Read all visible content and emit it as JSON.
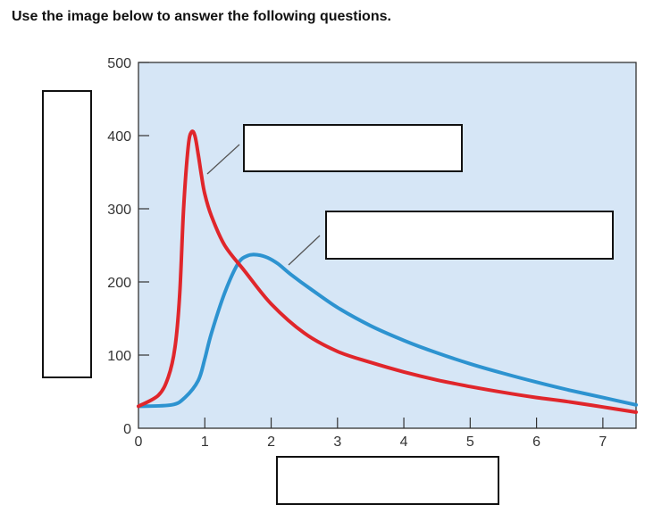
{
  "page": {
    "instruction": "Use the image below to answer the following questions."
  },
  "colors": {
    "plot_background": "#d6e6f6",
    "series_red": "#e0262b",
    "series_blue": "#2d93d0",
    "axis": "#333333"
  },
  "chart_data": {
    "type": "line",
    "title": "",
    "xlabel": "",
    "ylabel": "",
    "xlim": [
      0,
      7.5
    ],
    "ylim": [
      0,
      500
    ],
    "x_ticks": [
      "0",
      "1",
      "2",
      "3",
      "4",
      "5",
      "6",
      "7"
    ],
    "y_ticks": [
      "0",
      "100",
      "200",
      "300",
      "400",
      "500"
    ],
    "grid": false,
    "legend": "none",
    "series": [
      {
        "color": "#e0262b",
        "x": [
          0,
          0.3,
          0.45,
          0.55,
          0.62,
          0.68,
          0.75,
          0.8,
          0.85,
          0.9,
          0.95,
          1.0,
          1.1,
          1.3,
          1.6,
          2.0,
          2.5,
          3.0,
          3.5,
          4.0,
          4.5,
          5.0,
          5.5,
          6.0,
          6.5,
          7.0,
          7.5
        ],
        "y": [
          30,
          45,
          70,
          110,
          180,
          300,
          385,
          405,
          400,
          375,
          345,
          320,
          290,
          250,
          215,
          170,
          130,
          105,
          90,
          77,
          66,
          57,
          49,
          42,
          36,
          29,
          22
        ]
      },
      {
        "color": "#2d93d0",
        "x": [
          0,
          0.5,
          0.7,
          0.9,
          1.0,
          1.1,
          1.3,
          1.5,
          1.65,
          1.8,
          1.95,
          2.1,
          2.3,
          2.6,
          3.0,
          3.5,
          4.0,
          4.5,
          5.0,
          5.5,
          6.0,
          6.5,
          7.0,
          7.5
        ],
        "y": [
          30,
          32,
          42,
          65,
          95,
          130,
          185,
          225,
          236,
          237,
          233,
          225,
          210,
          190,
          165,
          140,
          120,
          103,
          88,
          75,
          63,
          52,
          42,
          32
        ]
      }
    ]
  }
}
